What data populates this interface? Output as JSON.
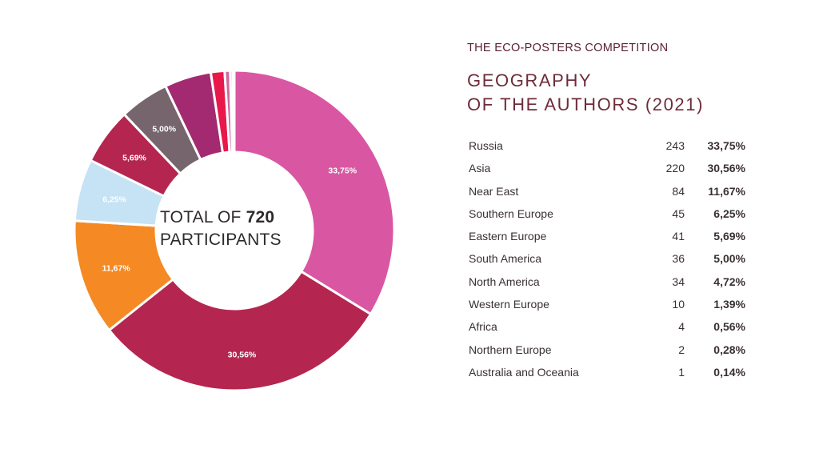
{
  "header": {
    "subtitle": "THE ECO-POSTERS COMPETITION",
    "title_line1": "GEOGRAPHY",
    "title_line2": "OF THE AUTHORS (2021)"
  },
  "center": {
    "total_prefix": "TOTAL OF ",
    "total_value": "720",
    "participants": "PARTICIPANTS"
  },
  "chart_data": {
    "type": "pie",
    "donut": true,
    "title": "GEOGRAPHY OF THE AUTHORS (2021)",
    "total": 720,
    "categories": [
      "Russia",
      "Asia",
      "Near East",
      "Southern Europe",
      "Eastern Europe",
      "South America",
      "North America",
      "Western Europe",
      "Africa",
      "Northern Europe",
      "Australia and Oceania"
    ],
    "values": [
      243,
      220,
      84,
      45,
      41,
      36,
      34,
      10,
      4,
      2,
      1
    ],
    "percent_labels": [
      "33,75%",
      "30,56%",
      "11,67%",
      "6,25%",
      "5,69%",
      "5,00%",
      "4,72%",
      "1,39%",
      "0,56%",
      "0,28%",
      "0,14%"
    ],
    "slice_labels_shown": [
      "33,75%",
      "30,56%",
      "11,67%",
      "6,25%",
      "5,69%",
      "5,00%",
      "",
      "",
      "",
      "",
      ""
    ],
    "colors": [
      "#d957a2",
      "#b42650",
      "#f58a24",
      "#c6e2f5",
      "#b42650",
      "#76656c",
      "#a32a70",
      "#e8184a",
      "#cf6aa0",
      "#f3a4a4",
      "#f9c8c8"
    ]
  }
}
